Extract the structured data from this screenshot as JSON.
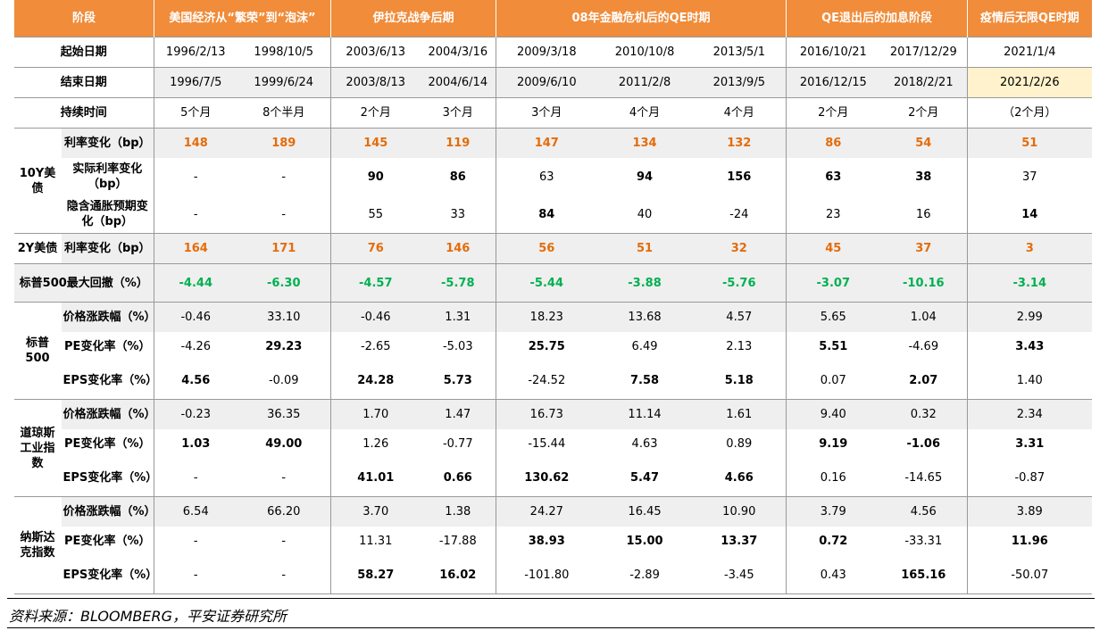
{
  "header": {
    "stage_label": "阶段",
    "start_label": "起始日期",
    "end_label": "结束日期",
    "duration_label": "持续时间",
    "phases": [
      {
        "name": "美国经济从“繁荣”到“泡沫”",
        "periods": [
          {
            "start": "1996/2/13",
            "end": "1996/7/5",
            "duration": "5个月"
          },
          {
            "start": "1998/10/5",
            "end": "1999/6/24",
            "duration": "8个半月"
          }
        ]
      },
      {
        "name": "伊拉克战争后期",
        "periods": [
          {
            "start": "2003/6/13",
            "end": "2003/8/13",
            "duration": "2个月"
          },
          {
            "start": "2004/3/16",
            "end": "2004/6/14",
            "duration": "3个月"
          }
        ]
      },
      {
        "name": "08年金融危机后的QE时期",
        "periods": [
          {
            "start": "2009/3/18",
            "end": "2009/6/10",
            "duration": "3个月"
          },
          {
            "start": "2010/10/8",
            "end": "2011/2/8",
            "duration": "4个月"
          },
          {
            "start": "2013/5/1",
            "end": "2013/9/5",
            "duration": "4个月"
          }
        ]
      },
      {
        "name": "QE退出后的加息阶段",
        "periods": [
          {
            "start": "2016/10/21",
            "end": "2016/12/15",
            "duration": "2个月"
          },
          {
            "start": "2017/12/29",
            "end": "2018/2/21",
            "duration": "2个月"
          }
        ]
      },
      {
        "name": "疫情后无限QE时期",
        "periods": [
          {
            "start": "2021/1/4",
            "end": "2021/2/26",
            "duration": "（2个月）",
            "end_highlight": true
          }
        ]
      }
    ]
  },
  "groups": [
    {
      "name": "10Y美债",
      "rows": [
        {
          "label": "利率变化（bp）",
          "color": "#E46C0A",
          "shade": true,
          "values": [
            "148",
            "189",
            "145",
            "119",
            "147",
            "134",
            "132",
            "86",
            "54",
            "51"
          ],
          "bold": [
            true,
            true,
            true,
            true,
            true,
            true,
            true,
            true,
            true,
            true
          ]
        },
        {
          "label": "实际利率变化（bp）",
          "values": [
            "-",
            "-",
            "90",
            "86",
            "63",
            "94",
            "156",
            "63",
            "38",
            "37"
          ],
          "bold": [
            false,
            false,
            true,
            true,
            false,
            true,
            true,
            true,
            true,
            false
          ]
        },
        {
          "label": "隐含通胀预期变化（bp）",
          "values": [
            "-",
            "-",
            "55",
            "33",
            "84",
            "40",
            "-24",
            "23",
            "16",
            "14"
          ],
          "bold": [
            false,
            false,
            false,
            false,
            true,
            false,
            false,
            false,
            false,
            true
          ]
        }
      ]
    },
    {
      "name": "2Y美债",
      "rows": [
        {
          "label": "利率变化（bp）",
          "color": "#E46C0A",
          "shade": true,
          "values": [
            "164",
            "171",
            "76",
            "146",
            "56",
            "51",
            "32",
            "45",
            "37",
            "3"
          ],
          "bold": [
            true,
            true,
            true,
            true,
            true,
            true,
            true,
            true,
            true,
            true
          ]
        }
      ]
    },
    {
      "rows": [
        {
          "label": "标普500最大回撤（%）",
          "color": "#00B050",
          "shade": true,
          "values": [
            "-4.44",
            "-6.30",
            "-4.57",
            "-5.78",
            "-5.44",
            "-3.88",
            "-5.76",
            "-3.07",
            "-10.16",
            "-3.14"
          ],
          "bold": [
            true,
            true,
            true,
            true,
            true,
            true,
            true,
            true,
            true,
            true
          ]
        }
      ]
    },
    {
      "name": "标普500",
      "rows": [
        {
          "label": "价格涨跌幅（%）",
          "shade": true,
          "values": [
            "-0.46",
            "33.10",
            "-0.46",
            "1.31",
            "18.23",
            "13.68",
            "4.57",
            "5.65",
            "1.04",
            "2.99"
          ],
          "bold": [
            false,
            false,
            false,
            false,
            false,
            false,
            false,
            false,
            false,
            false
          ]
        },
        {
          "label": "PE变化率（%）",
          "values": [
            "-4.26",
            "29.23",
            "-2.65",
            "-5.03",
            "25.75",
            "6.49",
            "2.13",
            "5.51",
            "-4.69",
            "3.43"
          ],
          "bold": [
            false,
            true,
            false,
            false,
            true,
            false,
            false,
            true,
            false,
            true
          ]
        },
        {
          "label": "EPS变化率（%）",
          "values": [
            "4.56",
            "-0.09",
            "24.28",
            "5.73",
            "-24.52",
            "7.58",
            "5.18",
            "0.07",
            "2.07",
            "1.40"
          ],
          "bold": [
            true,
            false,
            true,
            true,
            false,
            true,
            true,
            false,
            true,
            false
          ]
        }
      ]
    },
    {
      "name": "道琼斯工业指数",
      "rows": [
        {
          "label": "价格涨跌幅（%）",
          "shade": true,
          "values": [
            "-0.23",
            "36.35",
            "1.70",
            "1.47",
            "16.73",
            "11.14",
            "1.61",
            "9.40",
            "0.32",
            "2.34"
          ],
          "bold": [
            false,
            false,
            false,
            false,
            false,
            false,
            false,
            false,
            false,
            false
          ]
        },
        {
          "label": "PE变化率（%）",
          "values": [
            "1.03",
            "49.00",
            "1.26",
            "-0.77",
            "-15.44",
            "4.63",
            "0.89",
            "9.19",
            "-1.06",
            "3.31"
          ],
          "bold": [
            true,
            true,
            false,
            false,
            false,
            false,
            false,
            true,
            true,
            true
          ]
        },
        {
          "label": "EPS变化率（%）",
          "values": [
            "-",
            "-",
            "41.01",
            "0.66",
            "130.62",
            "5.47",
            "4.66",
            "0.16",
            "-14.65",
            "-0.87"
          ],
          "bold": [
            false,
            false,
            true,
            true,
            true,
            true,
            true,
            false,
            false,
            false
          ]
        }
      ]
    },
    {
      "name": "纳斯达克指数",
      "rows": [
        {
          "label": "价格涨跌幅（%）",
          "shade": true,
          "values": [
            "6.54",
            "66.20",
            "3.70",
            "1.38",
            "24.27",
            "16.45",
            "10.90",
            "3.79",
            "4.56",
            "3.89"
          ],
          "bold": [
            false,
            false,
            false,
            false,
            false,
            false,
            false,
            false,
            false,
            false
          ]
        },
        {
          "label": "PE变化率（%）",
          "values": [
            "-",
            "-",
            "11.31",
            "-17.88",
            "38.93",
            "15.00",
            "13.37",
            "0.72",
            "-33.31",
            "11.96"
          ],
          "bold": [
            false,
            false,
            false,
            false,
            true,
            true,
            true,
            true,
            false,
            true
          ]
        },
        {
          "label": "EPS变化率（%）",
          "values": [
            "-",
            "-",
            "58.27",
            "16.02",
            "-101.80",
            "-2.89",
            "-3.45",
            "0.43",
            "165.16",
            "-50.07"
          ],
          "bold": [
            false,
            false,
            true,
            true,
            false,
            false,
            false,
            false,
            true,
            false
          ]
        }
      ]
    }
  ],
  "source": "资料来源：BLOOMBERG，平安证券研究所"
}
